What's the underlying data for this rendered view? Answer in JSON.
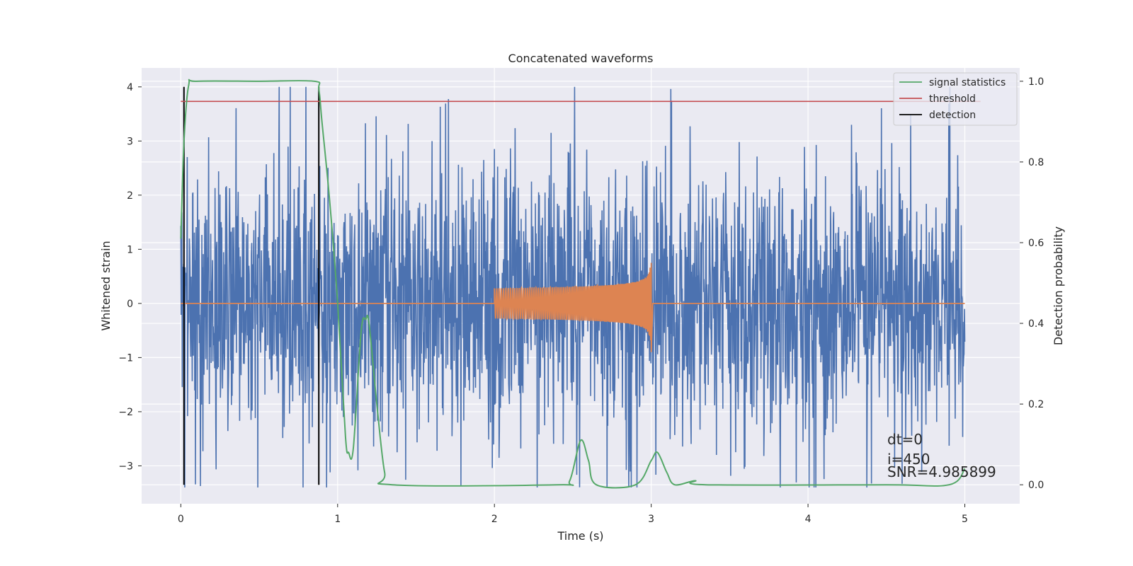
{
  "chart_data": {
    "type": "line",
    "title": "Concatenated waveforms",
    "xlabel": "Time (s)",
    "ylabel": "Whitened strain",
    "y2label": "Detection probability",
    "xlim": [
      -0.25,
      5.35
    ],
    "ylim": [
      -3.7,
      4.35
    ],
    "y2lim": [
      -0.047,
      1.033
    ],
    "xticks": [
      0,
      1,
      2,
      3,
      4,
      5
    ],
    "yticks": [
      -3,
      -2,
      -1,
      0,
      1,
      2,
      3,
      4
    ],
    "y2ticks": [
      0.0,
      0.2,
      0.4,
      0.6,
      0.8,
      1.0
    ],
    "xtick_labels": [
      "0",
      "1",
      "2",
      "3",
      "4",
      "5"
    ],
    "ytick_labels": [
      "−3",
      "−2",
      "−1",
      "0",
      "1",
      "2",
      "3",
      "4"
    ],
    "y2tick_labels": [
      "0.0",
      "0.2",
      "0.4",
      "0.6",
      "0.8",
      "1.0"
    ],
    "grid": true,
    "legend_position": "top-right",
    "legend": [
      "signal statistics",
      "threshold",
      "detection"
    ],
    "colors": {
      "background": "#eaeaf2",
      "grid": "#ffffff",
      "strain": "#4c72b0",
      "injection": "#dd8452",
      "signal_statistics": "#55a868",
      "threshold": "#c44e52",
      "detection": "#000000"
    },
    "strain_noise": {
      "name": "whitened strain (noise)",
      "t_start": 0.0,
      "t_end": 5.0,
      "approx_range": [
        -3.4,
        4.0
      ],
      "typical_amplitude": 1.3,
      "note": "dense noisy trace"
    },
    "injection": {
      "name": "injected chirp waveform",
      "t_start": 2.0,
      "t_merger": 3.0,
      "peak_amplitude": 0.75,
      "min_amplitude": -0.9
    },
    "signal_statistics": {
      "name": "signal statistics",
      "axis": "right",
      "points": [
        [
          0.0,
          0.61
        ],
        [
          0.02,
          0.85
        ],
        [
          0.05,
          0.99
        ],
        [
          0.1,
          1.0
        ],
        [
          0.5,
          1.0
        ],
        [
          0.85,
          1.0
        ],
        [
          0.88,
          0.98
        ],
        [
          0.9,
          0.9
        ],
        [
          0.95,
          0.7
        ],
        [
          1.0,
          0.45
        ],
        [
          1.05,
          0.12
        ],
        [
          1.07,
          0.08
        ],
        [
          1.1,
          0.09
        ],
        [
          1.15,
          0.38
        ],
        [
          1.18,
          0.41
        ],
        [
          1.2,
          0.4
        ],
        [
          1.25,
          0.2
        ],
        [
          1.3,
          0.03
        ],
        [
          1.35,
          0.0
        ],
        [
          2.4,
          0.0
        ],
        [
          2.48,
          0.01
        ],
        [
          2.55,
          0.11
        ],
        [
          2.6,
          0.06
        ],
        [
          2.65,
          0.0
        ],
        [
          2.9,
          0.0
        ],
        [
          3.0,
          0.06
        ],
        [
          3.04,
          0.08
        ],
        [
          3.1,
          0.03
        ],
        [
          3.15,
          0.0
        ],
        [
          3.28,
          0.01
        ],
        [
          3.35,
          0.0
        ],
        [
          4.5,
          0.0
        ],
        [
          4.9,
          0.0
        ],
        [
          5.0,
          0.04
        ]
      ]
    },
    "threshold": {
      "name": "threshold",
      "axis": "right",
      "value": 0.95,
      "x_range": [
        0.0,
        5.1
      ]
    },
    "detections": {
      "name": "detection",
      "t": [
        0.02,
        0.88
      ],
      "y_range": [
        -3.35,
        4.0
      ]
    },
    "annotations": [
      "dt=0",
      "i=450",
      "SNR=4.985899"
    ]
  }
}
